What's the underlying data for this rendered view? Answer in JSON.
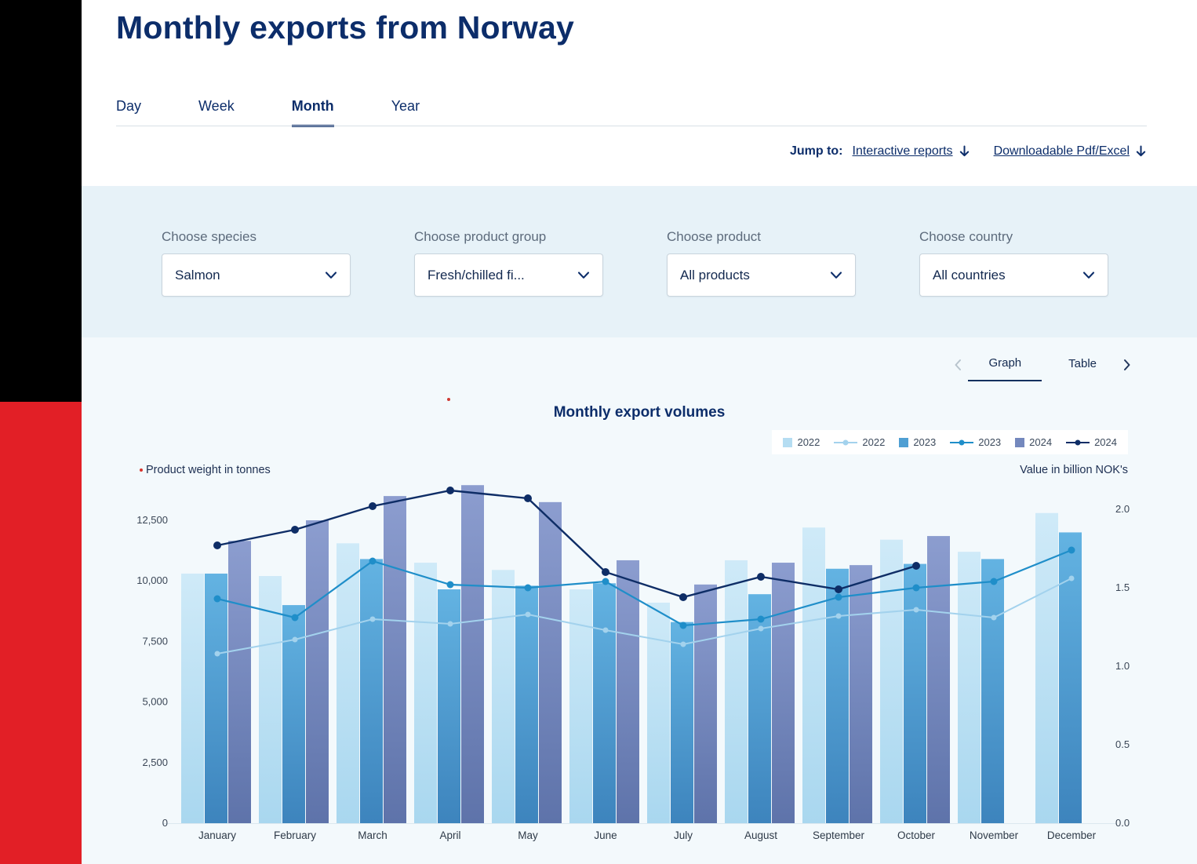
{
  "page": {
    "title": "Monthly exports from Norway",
    "tabs": [
      {
        "label": "Day",
        "active": false
      },
      {
        "label": "Week",
        "active": false
      },
      {
        "label": "Month",
        "active": true
      },
      {
        "label": "Year",
        "active": false
      }
    ],
    "jump_to": {
      "label": "Jump to:",
      "links": [
        {
          "text": "Interactive reports"
        },
        {
          "text": "Downloadable Pdf/Excel"
        }
      ]
    }
  },
  "filters": [
    {
      "label": "Choose species",
      "value": "Salmon"
    },
    {
      "label": "Choose product group",
      "value": "Fresh/chilled fi..."
    },
    {
      "label": "Choose product",
      "value": "All products"
    },
    {
      "label": "Choose country",
      "value": "All countries"
    }
  ],
  "view_toggle": {
    "options": [
      "Graph",
      "Table"
    ],
    "active": "Graph"
  },
  "brand_colors": {
    "sidebar_black": "#000000",
    "sidebar_red": "#e21f26",
    "navy": "#0c2d6a"
  },
  "chart_data": {
    "type": "bar+line",
    "title": "Monthly export volumes",
    "categories": [
      "January",
      "February",
      "March",
      "April",
      "May",
      "June",
      "July",
      "August",
      "September",
      "October",
      "November",
      "December"
    ],
    "left_axis": {
      "caption": "Product weight in tonnes",
      "unit": "tonnes",
      "ticks": [
        {
          "value": 0,
          "label": "0"
        },
        {
          "value": 2500,
          "label": "2,500"
        },
        {
          "value": 5000,
          "label": "5,000"
        },
        {
          "value": 7500,
          "label": "7,500"
        },
        {
          "value": 10000,
          "label": "10,000"
        },
        {
          "value": 12500,
          "label": "12,500"
        }
      ]
    },
    "right_axis": {
      "caption": "Value in billion NOK's",
      "unit": "billion NOK",
      "ticks": [
        {
          "value": 0,
          "label": "0.0"
        },
        {
          "value": 0.5,
          "label": "0.5"
        },
        {
          "value": 1,
          "label": "1.0"
        },
        {
          "value": 1.5,
          "label": "1.5"
        },
        {
          "value": 2,
          "label": "2.0"
        }
      ]
    },
    "bar_series": [
      {
        "name": "2022",
        "color_top": "#cfeaf8",
        "color_bottom": "#a9d7ef",
        "legend_color": "#b5ddf2",
        "values": [
          10300,
          10200,
          11550,
          10750,
          10450,
          9650,
          9100,
          10850,
          12200,
          11700,
          11200,
          12800
        ]
      },
      {
        "name": "2023",
        "color_top": "#63b3e2",
        "color_bottom": "#3d84bd",
        "legend_color": "#4f9fd3",
        "values": [
          10300,
          9000,
          10900,
          9650,
          9800,
          9900,
          8300,
          9450,
          10500,
          10700,
          10900,
          12000
        ]
      },
      {
        "name": "2024",
        "color_top": "#8c9dcf",
        "color_bottom": "#5e73aa",
        "legend_color": "#7488bd",
        "values": [
          11650,
          12500,
          13500,
          13950,
          13250,
          10850,
          9850,
          10750,
          10650,
          11850,
          null,
          null
        ]
      }
    ],
    "line_series": [
      {
        "name": "2022",
        "color": "#a3d2ed",
        "values": [
          1.08,
          1.17,
          1.3,
          1.27,
          1.33,
          1.23,
          1.14,
          1.24,
          1.32,
          1.36,
          1.31,
          1.56
        ]
      },
      {
        "name": "2023",
        "color": "#1f8ec9",
        "values": [
          1.43,
          1.31,
          1.67,
          1.52,
          1.5,
          1.54,
          1.26,
          1.3,
          1.44,
          1.5,
          1.54,
          1.74
        ]
      },
      {
        "name": "2024",
        "color": "#0e2d66",
        "values": [
          1.77,
          1.87,
          2.02,
          2.12,
          2.07,
          1.6,
          1.44,
          1.57,
          1.49,
          1.64,
          null,
          null
        ]
      }
    ],
    "legend": [
      {
        "type": "bar",
        "series": "2022",
        "label": "2022"
      },
      {
        "type": "line",
        "series": "2022",
        "label": "2022"
      },
      {
        "type": "bar",
        "series": "2023",
        "label": "2023"
      },
      {
        "type": "line",
        "series": "2023",
        "label": "2023"
      },
      {
        "type": "bar",
        "series": "2024",
        "label": "2024"
      },
      {
        "type": "line",
        "series": "2024",
        "label": "2024"
      }
    ]
  }
}
